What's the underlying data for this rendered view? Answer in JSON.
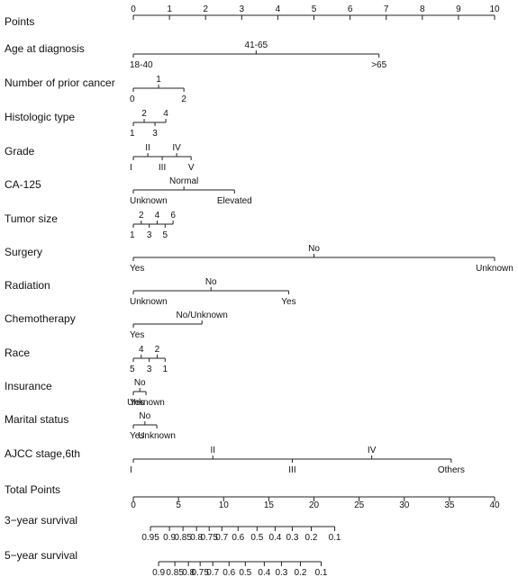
{
  "chart_data": {
    "type": "nomogram",
    "points_axis": {
      "label": "Points",
      "min": 0,
      "max": 10,
      "ticks": [
        0,
        1,
        2,
        3,
        4,
        5,
        6,
        7,
        8,
        9,
        10
      ]
    },
    "variables": [
      {
        "label": "Age at diagnosis",
        "levels": [
          {
            "name": "18-40",
            "points": 0.0,
            "side": "below"
          },
          {
            "name": "41-65",
            "points": 3.4,
            "side": "above"
          },
          {
            "name": ">65",
            "points": 6.8,
            "side": "below"
          }
        ]
      },
      {
        "label": "Number of prior cancer",
        "levels": [
          {
            "name": "0",
            "points": 0.0,
            "side": "below"
          },
          {
            "name": "1",
            "points": 0.7,
            "side": "above"
          },
          {
            "name": "2",
            "points": 1.4,
            "side": "below"
          }
        ]
      },
      {
        "label": "Histologic type",
        "levels": [
          {
            "name": "1",
            "points": 0.0,
            "side": "below"
          },
          {
            "name": "2",
            "points": 0.3,
            "side": "above"
          },
          {
            "name": "3",
            "points": 0.6,
            "side": "below"
          },
          {
            "name": "4",
            "points": 0.9,
            "side": "above"
          }
        ]
      },
      {
        "label": "Grade",
        "levels": [
          {
            "name": "I",
            "points": 0.0,
            "side": "below"
          },
          {
            "name": "II",
            "points": 0.4,
            "side": "above"
          },
          {
            "name": "III",
            "points": 0.8,
            "side": "below"
          },
          {
            "name": "IV",
            "points": 1.2,
            "side": "above"
          },
          {
            "name": "V",
            "points": 1.6,
            "side": "below"
          }
        ]
      },
      {
        "label": "CA-125",
        "levels": [
          {
            "name": "Unknown",
            "points": 0.0,
            "side": "below"
          },
          {
            "name": "Normal",
            "points": 1.4,
            "side": "above"
          },
          {
            "name": "Elevated",
            "points": 2.8,
            "side": "below"
          }
        ]
      },
      {
        "label": "Tumor size",
        "levels": [
          {
            "name": "1",
            "points": 0.0,
            "side": "below"
          },
          {
            "name": "2",
            "points": 0.22,
            "side": "above"
          },
          {
            "name": "3",
            "points": 0.44,
            "side": "below"
          },
          {
            "name": "4",
            "points": 0.66,
            "side": "above"
          },
          {
            "name": "5",
            "points": 0.88,
            "side": "below"
          },
          {
            "name": "6",
            "points": 1.1,
            "side": "above"
          }
        ]
      },
      {
        "label": "Surgery",
        "levels": [
          {
            "name": "Yes",
            "points": 0.0,
            "side": "below"
          },
          {
            "name": "No",
            "points": 5.0,
            "side": "above"
          },
          {
            "name": "Unknown",
            "points": 10.0,
            "side": "below"
          }
        ]
      },
      {
        "label": "Radiation",
        "levels": [
          {
            "name": "Unknown",
            "points": 0.0,
            "side": "below"
          },
          {
            "name": "No",
            "points": 2.15,
            "side": "above"
          },
          {
            "name": "Yes",
            "points": 4.3,
            "side": "below"
          }
        ]
      },
      {
        "label": "Chemotherapy",
        "levels": [
          {
            "name": "Yes",
            "points": 0.0,
            "side": "below"
          },
          {
            "name": "No/Unknown",
            "points": 1.9,
            "side": "above"
          }
        ]
      },
      {
        "label": "Race",
        "levels": [
          {
            "name": "5",
            "points": 0.0,
            "side": "below"
          },
          {
            "name": "4",
            "points": 0.22,
            "side": "above"
          },
          {
            "name": "3",
            "points": 0.44,
            "side": "below"
          },
          {
            "name": "2",
            "points": 0.66,
            "side": "above"
          },
          {
            "name": "1",
            "points": 0.88,
            "side": "below"
          }
        ]
      },
      {
        "label": "Insurance",
        "levels": [
          {
            "name": "Yes",
            "points": 0.0,
            "side": "below"
          },
          {
            "name": "No",
            "points": 0.18,
            "side": "above"
          },
          {
            "name": "Unknown",
            "points": 0.35,
            "side": "below"
          }
        ]
      },
      {
        "label": "Marital status",
        "levels": [
          {
            "name": "Yes",
            "points": 0.0,
            "side": "below"
          },
          {
            "name": "No",
            "points": 0.32,
            "side": "above"
          },
          {
            "name": "Unknown",
            "points": 0.65,
            "side": "below"
          }
        ]
      },
      {
        "label": "AJCC stage,6th",
        "levels": [
          {
            "name": "I",
            "points": 0.0,
            "side": "below"
          },
          {
            "name": "II",
            "points": 2.2,
            "side": "above"
          },
          {
            "name": "III",
            "points": 4.4,
            "side": "below"
          },
          {
            "name": "IV",
            "points": 6.6,
            "side": "above"
          },
          {
            "name": "Others",
            "points": 8.8,
            "side": "below"
          }
        ]
      }
    ],
    "total_points_axis": {
      "label": "Total Points",
      "min": 0,
      "max": 40,
      "ticks": [
        0,
        5,
        10,
        15,
        20,
        25,
        30,
        35,
        40
      ]
    },
    "survival_axes": [
      {
        "label": "3−year survival",
        "ticks": [
          {
            "label": "0.95",
            "total_points": 1.9
          },
          {
            "label": "0.9",
            "total_points": 4.0
          },
          {
            "label": "0.85",
            "total_points": 5.5
          },
          {
            "label": "0.8",
            "total_points": 7.0
          },
          {
            "label": "0.75",
            "total_points": 8.4
          },
          {
            "label": "0.7",
            "total_points": 9.8
          },
          {
            "label": "0.6",
            "total_points": 11.6
          },
          {
            "label": "0.5",
            "total_points": 13.7
          },
          {
            "label": "0.4",
            "total_points": 15.7
          },
          {
            "label": "0.3",
            "total_points": 17.6
          },
          {
            "label": "0.2",
            "total_points": 19.7
          },
          {
            "label": "0.1",
            "total_points": 22.3
          }
        ]
      },
      {
        "label": "5−year survival",
        "ticks": [
          {
            "label": "0.9",
            "total_points": 2.8
          },
          {
            "label": "0.85",
            "total_points": 4.6
          },
          {
            "label": "0.8",
            "total_points": 6.1
          },
          {
            "label": "0.75",
            "total_points": 7.4
          },
          {
            "label": "0.7",
            "total_points": 8.8
          },
          {
            "label": "0.6",
            "total_points": 10.6
          },
          {
            "label": "0.5",
            "total_points": 12.4
          },
          {
            "label": "0.4",
            "total_points": 14.5
          },
          {
            "label": "0.3",
            "total_points": 16.4
          },
          {
            "label": "0.2",
            "total_points": 18.5
          },
          {
            "label": "0.1",
            "total_points": 20.8
          }
        ]
      }
    ],
    "grid": false,
    "legend": "none"
  }
}
